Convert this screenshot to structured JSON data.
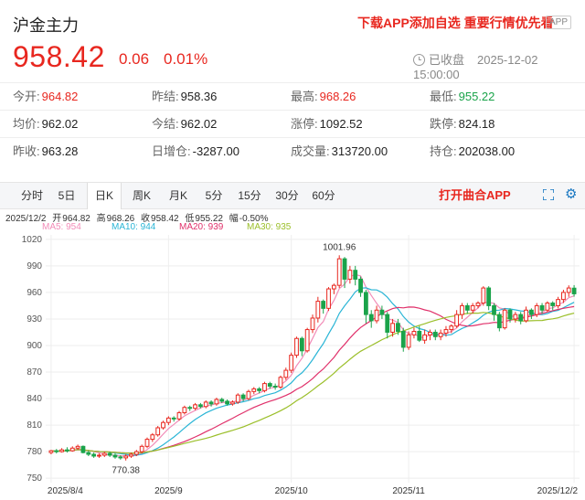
{
  "header": {
    "title": "沪金主力",
    "promo": "下载APP添加自选 重要行情优先看",
    "app_badge": "APP",
    "price": "958.42",
    "change": "0.06",
    "change_pct": "0.01%",
    "status": "已收盘",
    "datetime": "2025-12-02 15:00:00"
  },
  "quote_rows": [
    [
      {
        "label": "今开:",
        "value": "964.82",
        "color": "red"
      },
      {
        "label": "昨结:",
        "value": "958.36",
        "color": "normal"
      },
      {
        "label": "最高:",
        "value": "968.26",
        "color": "red"
      },
      {
        "label": "最低:",
        "value": "955.22",
        "color": "green"
      }
    ],
    [
      {
        "label": "均价:",
        "value": "962.02",
        "color": "normal"
      },
      {
        "label": "今结:",
        "value": "962.02",
        "color": "normal"
      },
      {
        "label": "涨停:",
        "value": "1092.52",
        "color": "normal"
      },
      {
        "label": "跌停:",
        "value": "824.18",
        "color": "normal"
      }
    ],
    [
      {
        "label": "昨收:",
        "value": "963.28",
        "color": "normal"
      },
      {
        "label": "日增仓:",
        "value": "-3287.00",
        "color": "normal"
      },
      {
        "label": "成交量:",
        "value": "313720.00",
        "color": "normal"
      },
      {
        "label": "持仓:",
        "value": "202038.00",
        "color": "normal"
      }
    ]
  ],
  "tabs": [
    "分时",
    "5日",
    "日K",
    "周K",
    "月K",
    "5分",
    "15分",
    "30分",
    "60分"
  ],
  "active_tab": "日K",
  "open_app": "打开曲合APP",
  "icons": {
    "fullscreen": "fullscreen-icon",
    "settings": "gear-icon"
  },
  "ohlc": {
    "date": "2025/12/2",
    "open_label": "开",
    "open": "964.82",
    "high_label": "高",
    "high": "968.26",
    "close_label": "收",
    "close": "958.42",
    "low_label": "低",
    "low": "955.22",
    "range_label": "幅",
    "range": "-0.50%"
  },
  "ma_legend": [
    {
      "label": "MA5: 954",
      "color": "#f28cb8"
    },
    {
      "label": "MA10: 944",
      "color": "#2ab5d6"
    },
    {
      "label": "MA20: 939",
      "color": "#e0306a"
    },
    {
      "label": "MA30: 935",
      "color": "#9bbf2a"
    }
  ],
  "chart_data": {
    "type": "candlestick",
    "y_ticks": [
      750,
      780,
      810,
      840,
      870,
      900,
      930,
      960,
      990,
      1020
    ],
    "ylim": [
      745,
      1025
    ],
    "x_ticks": [
      "2025/8/4",
      "2025/9",
      "2025/10",
      "2025/11",
      "2025/12/2"
    ],
    "annotations": [
      {
        "text": "1001.96",
        "value": 1001.96
      },
      {
        "text": "770.38",
        "value": 770.38
      }
    ],
    "colors": {
      "up": "#e8271f",
      "down": "#1aa34a"
    },
    "candles": [
      [
        779,
        781,
        777,
        782
      ],
      [
        781,
        780,
        778,
        783
      ],
      [
        780,
        782,
        779,
        784
      ],
      [
        782,
        781,
        779,
        785
      ],
      [
        781,
        784,
        780,
        786
      ],
      [
        784,
        786,
        782,
        788
      ],
      [
        786,
        779,
        778,
        787
      ],
      [
        779,
        777,
        775,
        781
      ],
      [
        777,
        775,
        773,
        779
      ],
      [
        775,
        776,
        773,
        778
      ],
      [
        776,
        778,
        774,
        780
      ],
      [
        778,
        776,
        774,
        780
      ],
      [
        776,
        774,
        772,
        778
      ],
      [
        774,
        773,
        771,
        776
      ],
      [
        773,
        775,
        770,
        777
      ],
      [
        775,
        777,
        773,
        779
      ],
      [
        777,
        780,
        775,
        782
      ],
      [
        780,
        786,
        778,
        788
      ],
      [
        786,
        794,
        784,
        796
      ],
      [
        794,
        799,
        791,
        801
      ],
      [
        799,
        807,
        797,
        809
      ],
      [
        807,
        813,
        805,
        815
      ],
      [
        813,
        818,
        810,
        820
      ],
      [
        818,
        817,
        814,
        820
      ],
      [
        817,
        824,
        815,
        826
      ],
      [
        824,
        830,
        822,
        832
      ],
      [
        830,
        829,
        826,
        832
      ],
      [
        829,
        833,
        827,
        835
      ],
      [
        833,
        831,
        829,
        835
      ],
      [
        831,
        836,
        829,
        838
      ],
      [
        836,
        834,
        831,
        838
      ],
      [
        834,
        839,
        832,
        841
      ],
      [
        839,
        837,
        835,
        841
      ],
      [
        837,
        834,
        832,
        839
      ],
      [
        834,
        836,
        832,
        838
      ],
      [
        836,
        844,
        834,
        846
      ],
      [
        844,
        840,
        837,
        846
      ],
      [
        840,
        848,
        838,
        850
      ],
      [
        848,
        851,
        845,
        853
      ],
      [
        851,
        849,
        846,
        853
      ],
      [
        849,
        857,
        847,
        859
      ],
      [
        857,
        854,
        851,
        859
      ],
      [
        854,
        853,
        850,
        857
      ],
      [
        853,
        864,
        851,
        866
      ],
      [
        864,
        872,
        861,
        875
      ],
      [
        872,
        889,
        869,
        892
      ],
      [
        889,
        908,
        886,
        910
      ],
      [
        908,
        894,
        888,
        910
      ],
      [
        894,
        918,
        892,
        920
      ],
      [
        918,
        931,
        914,
        935
      ],
      [
        931,
        950,
        926,
        955
      ],
      [
        950,
        942,
        936,
        952
      ],
      [
        942,
        964,
        939,
        966
      ],
      [
        964,
        968,
        958,
        970
      ],
      [
        968,
        998,
        965,
        1002
      ],
      [
        998,
        975,
        965,
        1000
      ],
      [
        975,
        985,
        970,
        990
      ],
      [
        985,
        975,
        968,
        990
      ],
      [
        975,
        960,
        955,
        978
      ],
      [
        960,
        935,
        925,
        963
      ],
      [
        935,
        928,
        920,
        940
      ],
      [
        928,
        940,
        925,
        945
      ],
      [
        940,
        935,
        930,
        945
      ],
      [
        935,
        915,
        908,
        938
      ],
      [
        915,
        925,
        910,
        930
      ],
      [
        925,
        916,
        912,
        930
      ],
      [
        916,
        898,
        893,
        920
      ],
      [
        898,
        912,
        895,
        916
      ],
      [
        912,
        916,
        908,
        920
      ],
      [
        916,
        906,
        904,
        922
      ],
      [
        906,
        912,
        902,
        918
      ],
      [
        912,
        915,
        906,
        918
      ],
      [
        915,
        910,
        906,
        918
      ],
      [
        910,
        914,
        906,
        918
      ],
      [
        914,
        918,
        910,
        922
      ],
      [
        918,
        922,
        914,
        924
      ],
      [
        922,
        935,
        920,
        940
      ],
      [
        935,
        945,
        930,
        948
      ],
      [
        945,
        940,
        936,
        948
      ],
      [
        940,
        945,
        936,
        948
      ],
      [
        945,
        948,
        942,
        950
      ],
      [
        948,
        965,
        945,
        967
      ],
      [
        965,
        945,
        940,
        967
      ],
      [
        945,
        935,
        928,
        948
      ],
      [
        935,
        920,
        916,
        938
      ],
      [
        920,
        940,
        918,
        942
      ],
      [
        940,
        930,
        926,
        942
      ],
      [
        930,
        935,
        926,
        938
      ],
      [
        935,
        928,
        924,
        938
      ],
      [
        928,
        940,
        926,
        944
      ],
      [
        940,
        935,
        930,
        942
      ],
      [
        935,
        945,
        932,
        948
      ],
      [
        945,
        940,
        936,
        948
      ],
      [
        940,
        948,
        938,
        950
      ],
      [
        948,
        945,
        940,
        950
      ],
      [
        945,
        952,
        942,
        955
      ],
      [
        952,
        960,
        948,
        963
      ],
      [
        960,
        965,
        955,
        968
      ],
      [
        964.82,
        958.42,
        955.22,
        968.26
      ]
    ]
  }
}
